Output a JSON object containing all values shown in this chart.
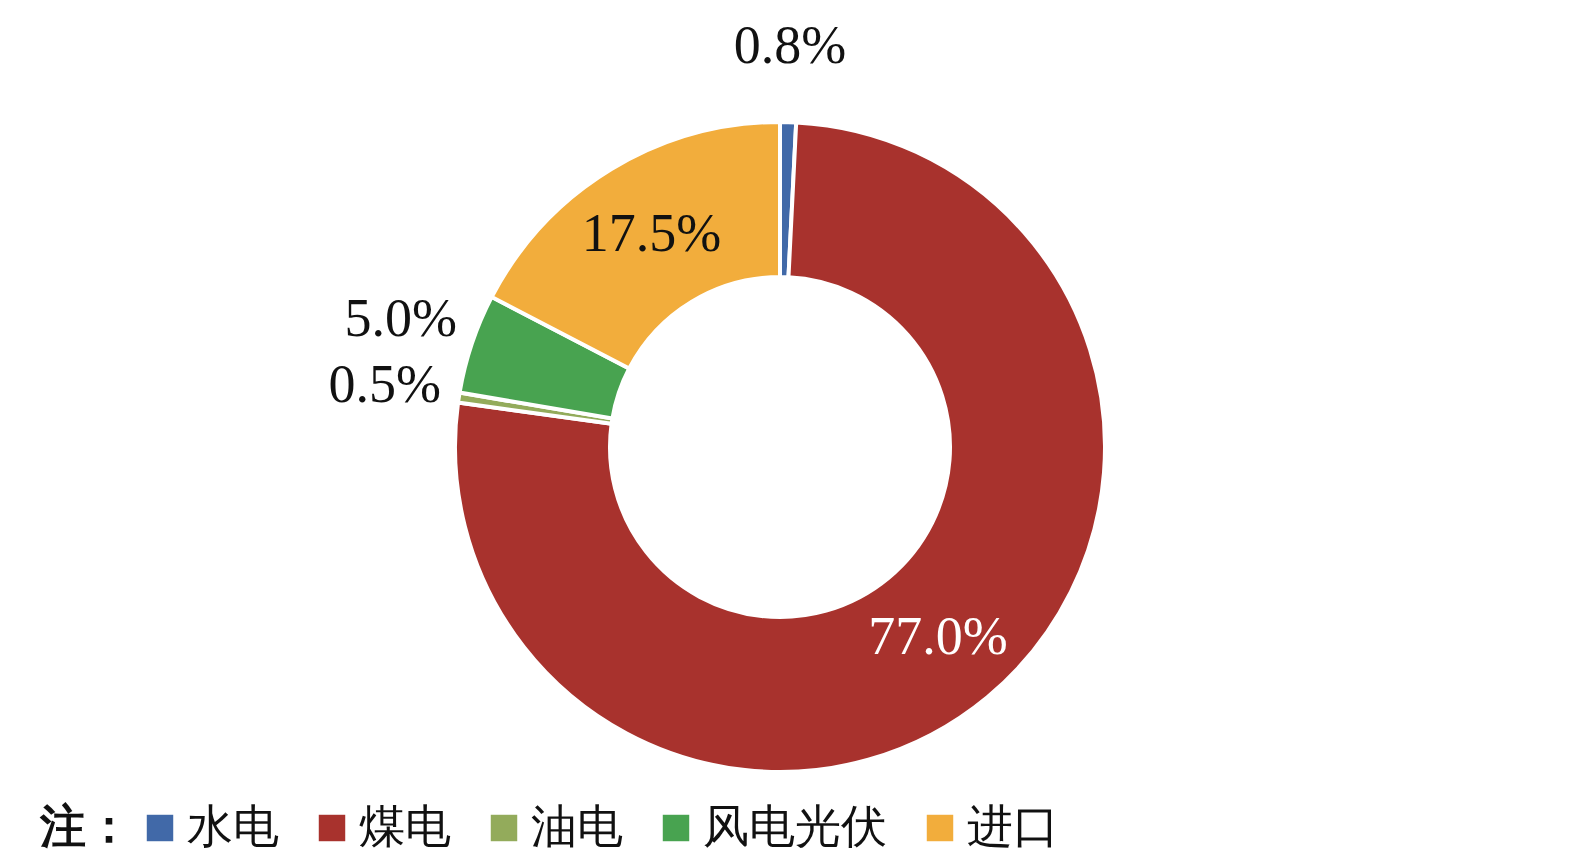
{
  "chart_data": {
    "type": "donut",
    "categories": [
      "水电",
      "煤电",
      "油电",
      "风电光伏",
      "进口"
    ],
    "values": [
      0.8,
      77.0,
      0.5,
      5.0,
      17.5
    ],
    "colors": [
      "#4169a8",
      "#a8322d",
      "#93ab5b",
      "#48a350",
      "#f2ad3c"
    ],
    "value_labels": [
      "0.8%",
      "77.0%",
      "0.5%",
      "5.0%",
      "17.5%"
    ],
    "legend_title": "注：",
    "legend": "bottom"
  }
}
